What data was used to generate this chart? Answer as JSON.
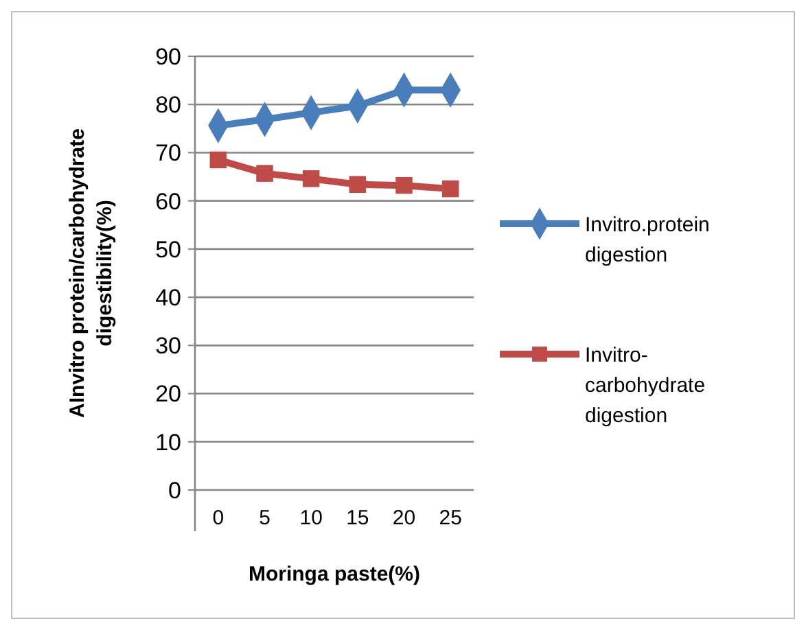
{
  "chart_data": {
    "type": "line",
    "categories": [
      "0",
      "5",
      "10",
      "15",
      "20",
      "25"
    ],
    "series": [
      {
        "name": "Invitro.protein digestion",
        "color": "#4a7ebb",
        "marker": "diamond",
        "values": [
          75.6,
          76.9,
          78.3,
          79.7,
          83.0,
          83.0
        ]
      },
      {
        "name": "Invitro-carbohydrate digestion",
        "color": "#be4b48",
        "marker": "square",
        "values": [
          68.5,
          65.7,
          64.6,
          63.4,
          63.2,
          62.5
        ]
      }
    ],
    "xlabel": "Moringa paste(%)",
    "ylabel": "AInvitro protein/carbohydrate digestibility(%)",
    "ylim": [
      0,
      90
    ],
    "yticks": [
      0,
      10,
      20,
      30,
      40,
      50,
      60,
      70,
      80,
      90
    ],
    "grid": "y",
    "legend": "right"
  }
}
